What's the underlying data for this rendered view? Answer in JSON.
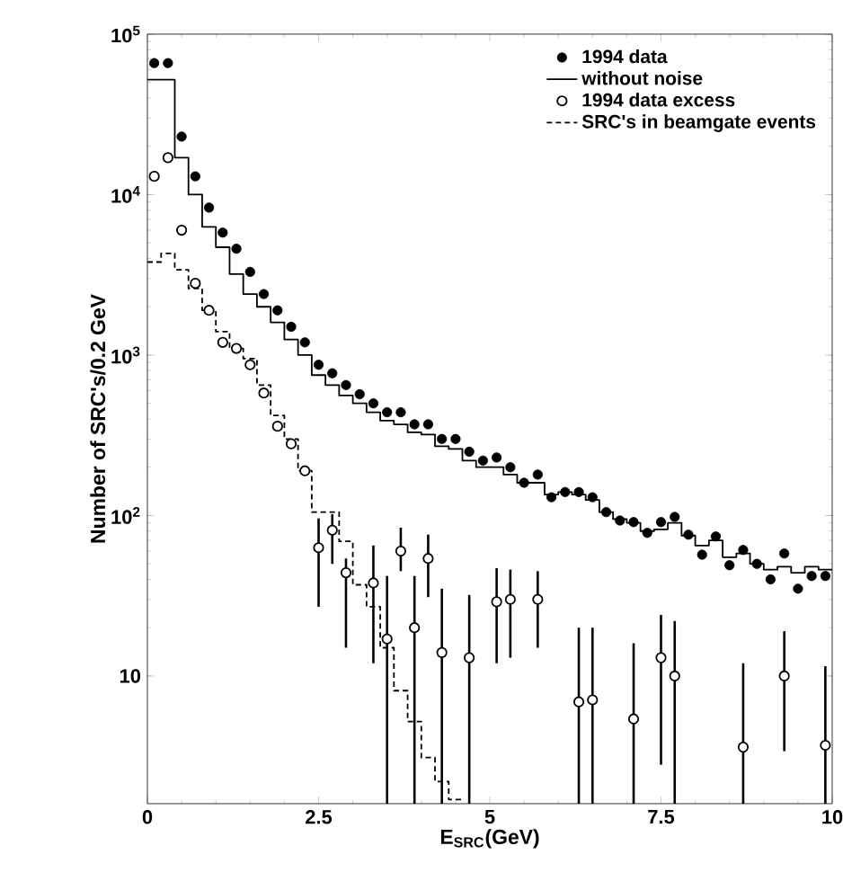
{
  "chart_data": {
    "type": "scatter",
    "xlabel": "E$_{SRC}$(GeV)",
    "ylabel": "Number of SRC's/0.2 GeV",
    "log": "y",
    "legend": "top right",
    "grid": false,
    "xlim": [
      0,
      10
    ],
    "ylim": [
      1.6,
      100000
    ],
    "xticks": [
      0,
      2.5,
      5,
      7.5,
      10
    ],
    "yticks": [
      10,
      {
        "value": 100,
        "label": "10$^{2}$"
      },
      {
        "value": 1000,
        "label": "10$^{3}$"
      },
      {
        "value": 10000,
        "label": "10$^{4}$"
      },
      {
        "value": 100000,
        "label": "10$^{5}$"
      }
    ],
    "series": [
      {
        "name": "1994 data",
        "marker": "circle",
        "color": "#000000",
        "x": [
          0.1,
          0.3,
          0.5,
          0.7,
          0.9,
          1.1,
          1.3,
          1.5,
          1.7,
          1.9,
          2.1,
          2.3,
          2.5,
          2.7,
          2.9,
          3.1,
          3.3,
          3.5,
          3.7,
          3.9,
          4.1,
          4.3,
          4.5,
          4.7,
          4.9,
          5.1,
          5.3,
          5.5,
          5.7,
          5.9,
          6.1,
          6.3,
          6.5,
          6.7,
          6.9,
          7.1,
          7.3,
          7.5,
          7.7,
          7.9,
          8.1,
          8.3,
          8.5,
          8.7,
          8.9,
          9.1,
          9.3,
          9.5,
          9.7,
          9.9
        ],
        "values": [
          66000,
          66000,
          23000,
          13000,
          8300,
          5800,
          4600,
          3300,
          2400,
          1900,
          1500,
          1200,
          870,
          770,
          650,
          570,
          500,
          440,
          440,
          370,
          370,
          300,
          300,
          250,
          220,
          230,
          200,
          160,
          180,
          130,
          140,
          140,
          130,
          105,
          93,
          91,
          78,
          91,
          98,
          76,
          57,
          74,
          49,
          61,
          50,
          40,
          58,
          35,
          42,
          42
        ]
      },
      {
        "name": "without noise",
        "type": "step",
        "line_style": "solid",
        "color": "#000000",
        "x": [
          0,
          0.2,
          0.4,
          0.6,
          0.8,
          1.0,
          1.2,
          1.4,
          1.6,
          1.8,
          2.0,
          2.2,
          2.4,
          2.6,
          2.8,
          3.0,
          3.2,
          3.4,
          3.6,
          3.8,
          4.0,
          4.2,
          4.4,
          4.6,
          4.8,
          5.0,
          5.2,
          5.4,
          5.6,
          5.8,
          6.0,
          6.2,
          6.4,
          6.6,
          6.8,
          7.0,
          7.2,
          7.4,
          7.6,
          7.8,
          8.0,
          8.2,
          8.4,
          8.6,
          8.8,
          9.0,
          9.2,
          9.4,
          9.6,
          9.8,
          10
        ],
        "values": [
          52000,
          52000,
          17000,
          10000,
          6300,
          4700,
          3200,
          2400,
          2000,
          1600,
          1250,
          1000,
          750,
          650,
          560,
          500,
          440,
          390,
          370,
          330,
          320,
          270,
          260,
          220,
          200,
          200,
          180,
          160,
          160,
          135,
          140,
          135,
          125,
          105,
          95,
          90,
          80,
          82,
          90,
          75,
          65,
          70,
          55,
          58,
          50,
          46,
          48,
          44,
          48,
          46,
          46
        ]
      },
      {
        "name": "1994 data excess",
        "marker": "open circle",
        "color": "#000000",
        "x": [
          0.1,
          0.3,
          0.5,
          0.7,
          0.9,
          1.1,
          1.3,
          1.5,
          1.7,
          1.9,
          2.1,
          2.3,
          2.5,
          2.7,
          2.9,
          3.3,
          3.5,
          3.7,
          3.9,
          4.1,
          4.3,
          4.7,
          5.1,
          5.3,
          5.7,
          6.3,
          6.5,
          7.1,
          7.5,
          7.7,
          8.7,
          9.3,
          9.9
        ],
        "values": [
          13000,
          17000,
          6000,
          2800,
          1900,
          1200,
          1100,
          870,
          580,
          360,
          280,
          190,
          63,
          81,
          44,
          38,
          17,
          60,
          20,
          54,
          14,
          13,
          29,
          30,
          30,
          6.9,
          7.1,
          5.4,
          13,
          10,
          3.6,
          10,
          3.7
        ],
        "errors": [
          null,
          null,
          null,
          null,
          null,
          null,
          null,
          null,
          null,
          null,
          null,
          null,
          [
            27,
            96
          ],
          [
            50,
            102
          ],
          [
            15,
            54
          ],
          [
            12,
            65
          ],
          [
            1.6,
            42
          ],
          [
            45,
            84
          ],
          [
            1.6,
            42
          ],
          [
            31,
            76
          ],
          [
            1.6,
            35
          ],
          [
            1.6,
            32
          ],
          [
            12,
            47
          ],
          [
            13,
            46
          ],
          [
            15,
            45
          ],
          [
            1.6,
            20
          ],
          [
            1.6,
            20
          ],
          [
            1.6,
            16
          ],
          [
            2.8,
            24
          ],
          [
            1.6,
            22
          ],
          [
            1.6,
            12
          ],
          [
            3.4,
            19
          ],
          [
            1.6,
            11.5
          ]
        ]
      },
      {
        "name": "SRC's in beamgate events",
        "type": "step",
        "line_style": "dashed",
        "color": "#000000",
        "x": [
          0,
          0.2,
          0.4,
          0.6,
          0.8,
          1.0,
          1.2,
          1.4,
          1.6,
          1.8,
          2.0,
          2.2,
          2.4,
          2.6,
          2.8,
          3.0,
          3.2,
          3.4,
          3.6,
          3.8,
          4.0,
          4.2,
          4.4,
          4.6
        ],
        "values": [
          3800,
          4300,
          3400,
          2600,
          1900,
          1400,
          1100,
          950,
          650,
          420,
          300,
          190,
          105,
          105,
          69,
          37,
          27,
          15,
          8.1,
          5.2,
          3.1,
          2.2,
          1.7,
          1.7
        ]
      }
    ]
  }
}
